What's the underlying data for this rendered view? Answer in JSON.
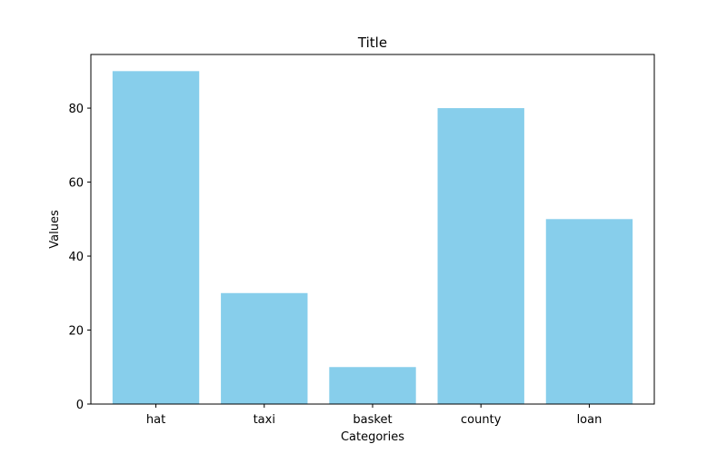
{
  "chart_data": {
    "type": "bar",
    "title": "Title",
    "xlabel": "Categories",
    "ylabel": "Values",
    "categories": [
      "hat",
      "taxi",
      "basket",
      "county",
      "loan"
    ],
    "values": [
      90,
      30,
      10,
      80,
      50
    ],
    "ylim": [
      0,
      94.5
    ],
    "yticks": [
      0,
      20,
      40,
      60,
      80
    ],
    "bar_color": "#87CEEB",
    "grid": false,
    "legend": "none"
  }
}
